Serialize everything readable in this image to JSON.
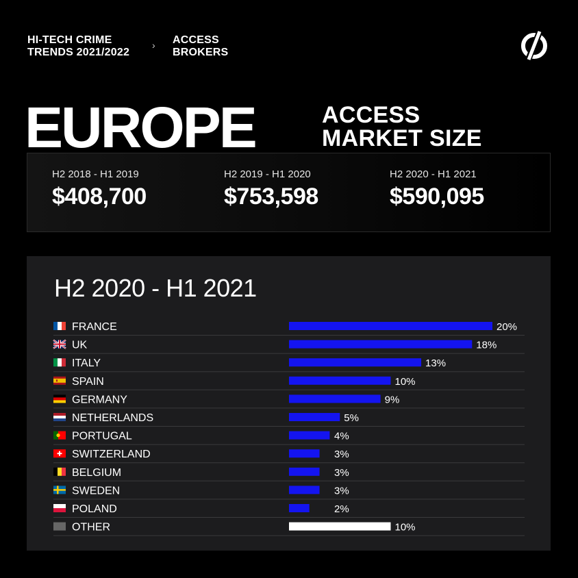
{
  "header": {
    "crumb1_line1": "HI-TECH CRIME",
    "crumb1_line2": "TRENDS 2021/2022",
    "separator": "›",
    "crumb2_line1": "ACCESS",
    "crumb2_line2": "BROKERS"
  },
  "logo_icon": "group-ib-logo-icon",
  "title": {
    "main": "EUROPE",
    "sub_line1": "ACCESS",
    "sub_line2": "MARKET SIZE"
  },
  "stats": [
    {
      "period": "H2 2018 - H1 2019",
      "value": "$408,700"
    },
    {
      "period": "H2 2019 - H1 2020",
      "value": "$753,598"
    },
    {
      "period": "H2 2020 - H1 2021",
      "value": "$590,095"
    }
  ],
  "panel": {
    "title": "H2 2020 - H1 2021"
  },
  "colors": {
    "bar": "#1414f0",
    "other_bar": "#ffffff",
    "panel_bg": "#1c1c1e",
    "divider": "#3a3a3c"
  },
  "chart_data": {
    "type": "bar",
    "orientation": "horizontal",
    "categories": [
      "FRANCE",
      "UK",
      "ITALY",
      "SPAIN",
      "GERMANY",
      "NETHERLANDS",
      "PORTUGAL",
      "SWITZERLAND",
      "BELGIUM",
      "SWEDEN",
      "POLAND",
      "OTHER"
    ],
    "values": [
      20,
      18,
      13,
      10,
      9,
      5,
      4,
      3,
      3,
      3,
      2,
      10
    ],
    "labels": [
      "20%",
      "18%",
      "13%",
      "10%",
      "9%",
      "5%",
      "4%",
      "3%",
      "3%",
      "3%",
      "2%",
      "10%"
    ],
    "flag_icons": [
      "france-flag-icon",
      "uk-flag-icon",
      "italy-flag-icon",
      "spain-flag-icon",
      "germany-flag-icon",
      "netherlands-flag-icon",
      "portugal-flag-icon",
      "switzerland-flag-icon",
      "belgium-flag-icon",
      "sweden-flag-icon",
      "poland-flag-icon",
      "other-flag-icon"
    ],
    "unit": "%",
    "xlim": [
      0,
      20
    ]
  }
}
